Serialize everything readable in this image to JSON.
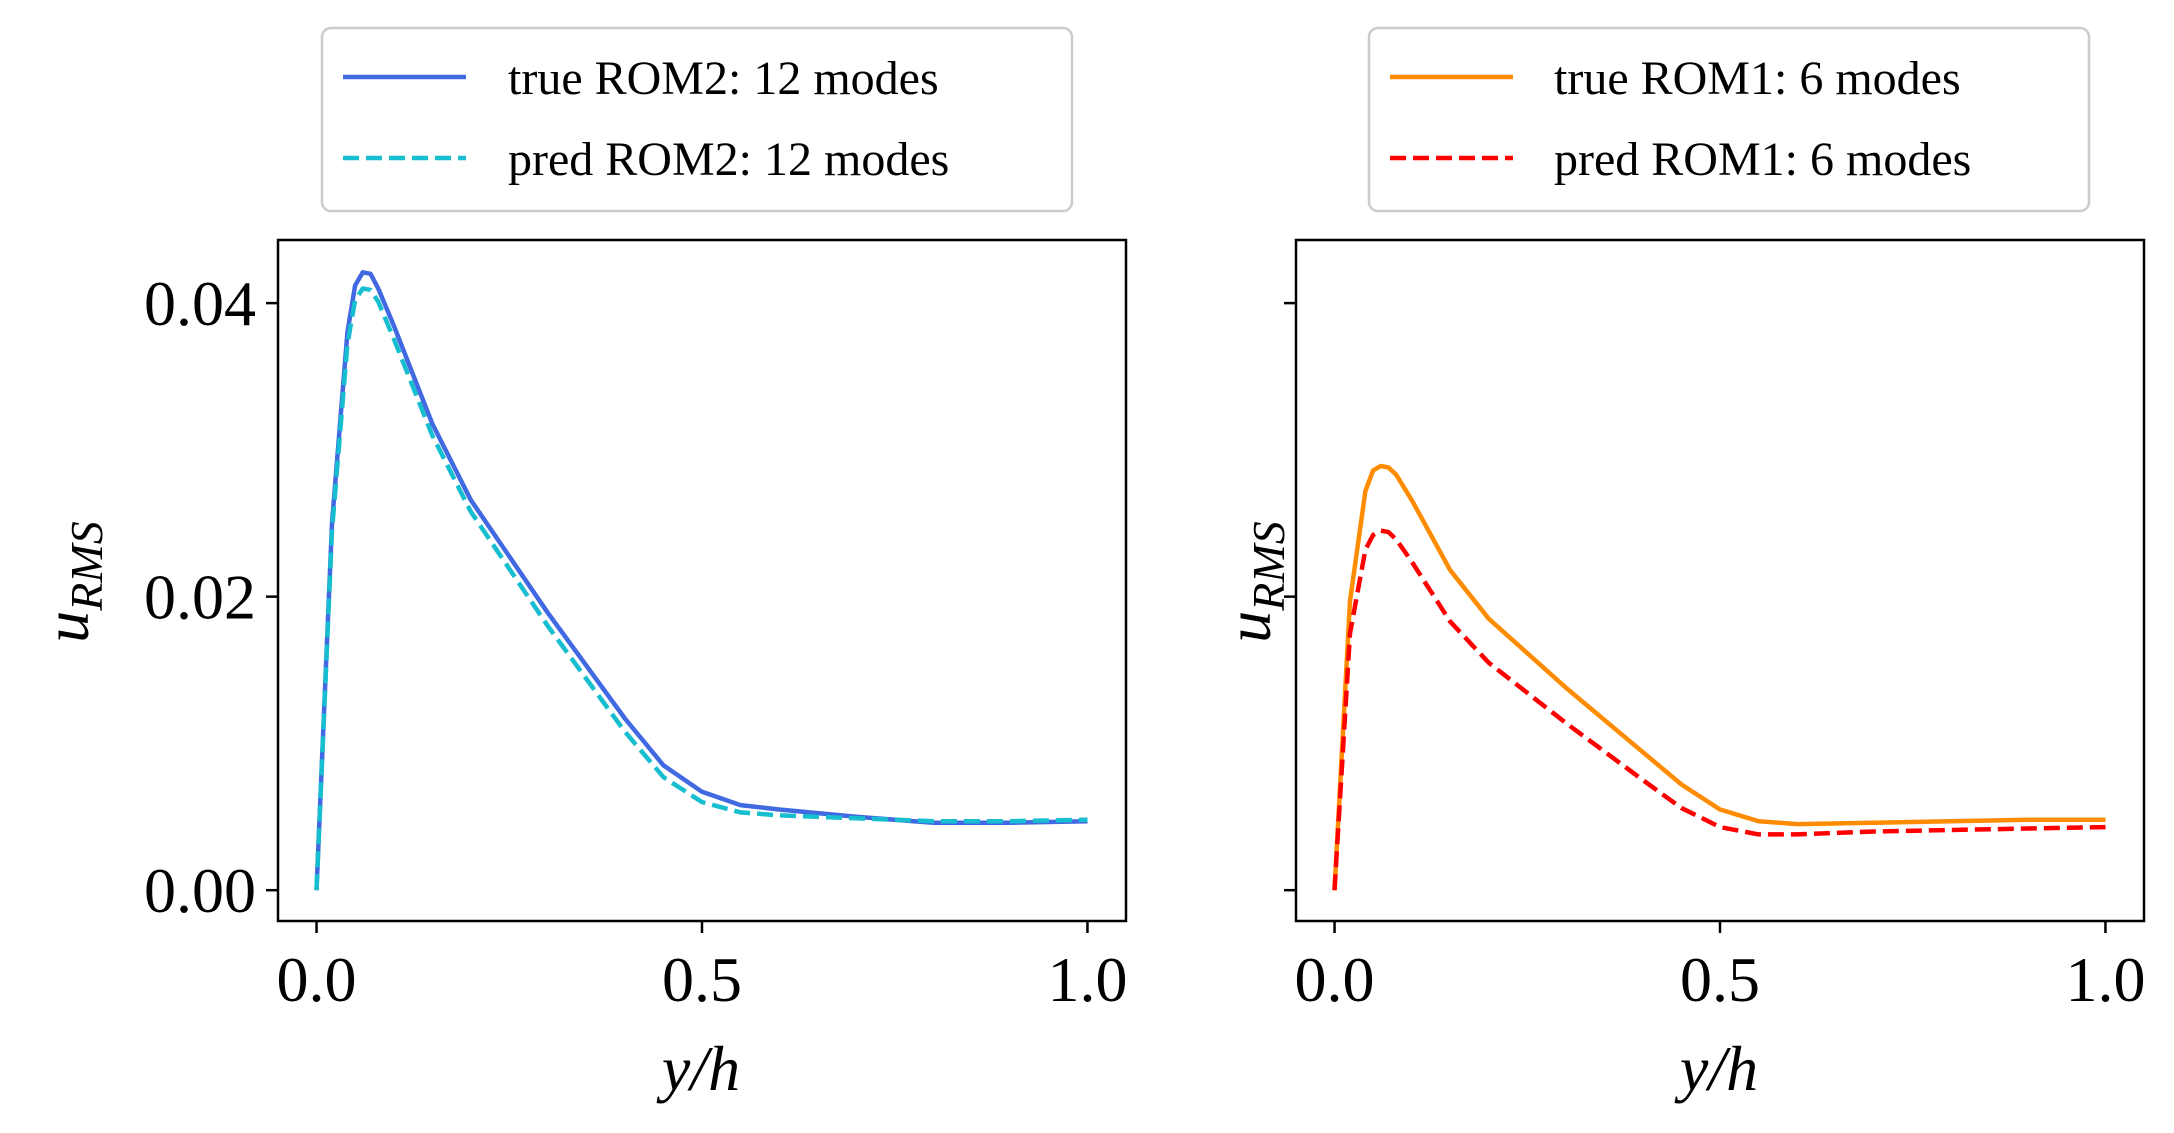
{
  "chart_data": [
    {
      "type": "line",
      "xlabel": "y/h",
      "ylabel": "u_RMS",
      "ylabel_main": "u",
      "ylabel_sub": "RMS",
      "xlim": [
        -0.05,
        1.05
      ],
      "ylim": [
        -0.0021,
        0.0443
      ],
      "xticks": [
        0.0,
        0.5,
        1.0
      ],
      "xtick_labels": [
        "0.0",
        "0.5",
        "1.0"
      ],
      "yticks": [
        0.0,
        0.02,
        0.04
      ],
      "ytick_labels": [
        "0.00",
        "0.02",
        "0.04"
      ],
      "legend_position": "top-center-outside",
      "series": [
        {
          "name": "true ROM2: 12 modes",
          "color": "#4169e1",
          "style": "solid",
          "x": [
            0,
            0.02,
            0.04,
            0.05,
            0.06,
            0.07,
            0.08,
            0.1,
            0.15,
            0.2,
            0.3,
            0.4,
            0.45,
            0.5,
            0.55,
            0.6,
            0.7,
            0.8,
            0.9,
            1.0
          ],
          "y": [
            0,
            0.025,
            0.038,
            0.0412,
            0.0421,
            0.042,
            0.041,
            0.0385,
            0.0318,
            0.0266,
            0.0189,
            0.0117,
            0.0085,
            0.0067,
            0.0058,
            0.0055,
            0.005,
            0.0046,
            0.0046,
            0.0047
          ]
        },
        {
          "name": "pred ROM2: 12 modes",
          "color": "#17becf",
          "style": "dashed",
          "x": [
            0,
            0.02,
            0.04,
            0.05,
            0.06,
            0.07,
            0.08,
            0.1,
            0.15,
            0.2,
            0.3,
            0.4,
            0.45,
            0.5,
            0.55,
            0.6,
            0.7,
            0.8,
            0.9,
            1.0
          ],
          "y": [
            0,
            0.0245,
            0.0372,
            0.0402,
            0.041,
            0.0409,
            0.0401,
            0.0376,
            0.031,
            0.0258,
            0.018,
            0.0108,
            0.0077,
            0.006,
            0.0053,
            0.0051,
            0.0049,
            0.0047,
            0.0047,
            0.0048
          ]
        }
      ]
    },
    {
      "type": "line",
      "xlabel": "y/h",
      "ylabel": "u_RMS",
      "ylabel_main": "u",
      "ylabel_sub": "RMS",
      "xlim": [
        -0.05,
        1.05
      ],
      "ylim": [
        -0.0021,
        0.0443
      ],
      "xticks": [
        0.0,
        0.5,
        1.0
      ],
      "xtick_labels": [
        "0.0",
        "0.5",
        "1.0"
      ],
      "yticks": [
        0.0,
        0.02,
        0.04
      ],
      "ytick_labels": [
        "",
        "",
        ""
      ],
      "legend_position": "top-center-outside",
      "series": [
        {
          "name": "true ROM1: 6 modes",
          "color": "#ff8c00",
          "style": "solid",
          "x": [
            0,
            0.02,
            0.04,
            0.05,
            0.06,
            0.07,
            0.08,
            0.1,
            0.15,
            0.2,
            0.3,
            0.4,
            0.45,
            0.5,
            0.55,
            0.6,
            0.7,
            0.8,
            0.9,
            1.0
          ],
          "y": [
            0,
            0.0197,
            0.0272,
            0.0286,
            0.0289,
            0.0288,
            0.0283,
            0.0266,
            0.0218,
            0.0185,
            0.0138,
            0.0094,
            0.0072,
            0.0055,
            0.0047,
            0.0045,
            0.0046,
            0.0047,
            0.0048,
            0.0048
          ]
        },
        {
          "name": "pred ROM1: 6 modes",
          "color": "#ff0000",
          "style": "dashed",
          "x": [
            0,
            0.02,
            0.04,
            0.05,
            0.06,
            0.07,
            0.08,
            0.1,
            0.15,
            0.2,
            0.3,
            0.4,
            0.45,
            0.5,
            0.55,
            0.6,
            0.7,
            0.8,
            0.9,
            1.0
          ],
          "y": [
            0,
            0.0175,
            0.0232,
            0.0242,
            0.0245,
            0.0244,
            0.0239,
            0.0224,
            0.0183,
            0.0155,
            0.0114,
            0.0075,
            0.0056,
            0.0043,
            0.0038,
            0.0038,
            0.004,
            0.0041,
            0.0042,
            0.0043
          ]
        }
      ]
    }
  ]
}
